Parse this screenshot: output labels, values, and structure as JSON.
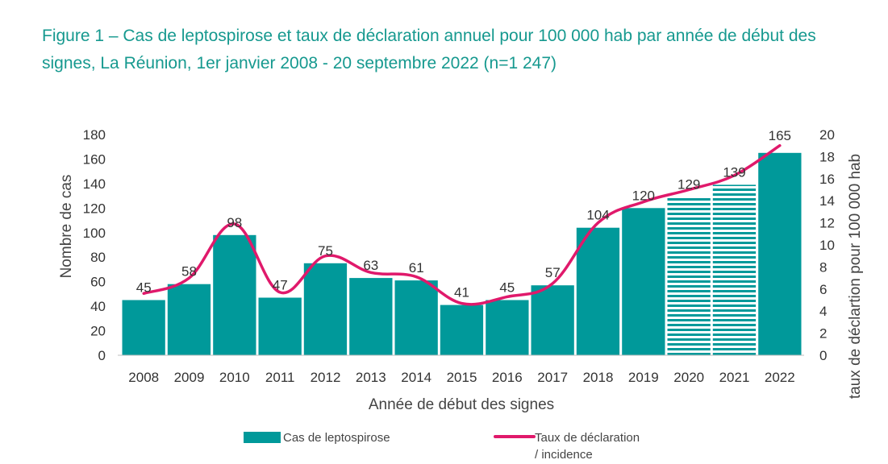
{
  "title": "Figure 1 – Cas de leptospirose et taux de déclaration annuel pour 100 000 hab par année de début des signes, La Réunion, 1er janvier 2008 - 20 septembre 2022 (n=1 247)",
  "chart_data": {
    "type": "bar",
    "title": "Figure 1 – Cas de leptospirose et taux de déclaration annuel pour 100 000 hab par année de début des signes, La Réunion, 1er janvier 2008 - 20 septembre 2022 (n=1 247)",
    "categories": [
      "2008",
      "2009",
      "2010",
      "2011",
      "2012",
      "2013",
      "2014",
      "2015",
      "2016",
      "2017",
      "2018",
      "2019",
      "2020",
      "2021",
      "2022"
    ],
    "xlabel": "Année de début des signes",
    "ylabel": "Nombre de cas",
    "y2label": "taux de déclartion pour 100 000 hab",
    "ylim": [
      0,
      180
    ],
    "y2lim": [
      0,
      20
    ],
    "yticks": [
      0,
      20,
      40,
      60,
      80,
      100,
      120,
      140,
      160,
      180
    ],
    "y2ticks": [
      0,
      2,
      4,
      6,
      8,
      10,
      12,
      14,
      16,
      18,
      20
    ],
    "grid": false,
    "legend_position": "bottom",
    "series": [
      {
        "name": "Cas de leptospirose",
        "type": "bar",
        "axis": "left",
        "color": "#00999a",
        "values": [
          45,
          58,
          98,
          47,
          75,
          63,
          61,
          41,
          45,
          57,
          104,
          120,
          129,
          139,
          165
        ],
        "hatched": [
          false,
          false,
          false,
          false,
          false,
          false,
          false,
          false,
          false,
          false,
          false,
          false,
          true,
          true,
          false
        ]
      },
      {
        "name": "Taux de déclaration / incidence",
        "type": "line",
        "axis": "right",
        "color": "#e0196b",
        "values": [
          5.6,
          7.0,
          11.9,
          5.7,
          9.0,
          7.5,
          7.1,
          4.7,
          5.3,
          6.5,
          12.0,
          13.9,
          15.0,
          16.3,
          19.0
        ]
      }
    ]
  }
}
